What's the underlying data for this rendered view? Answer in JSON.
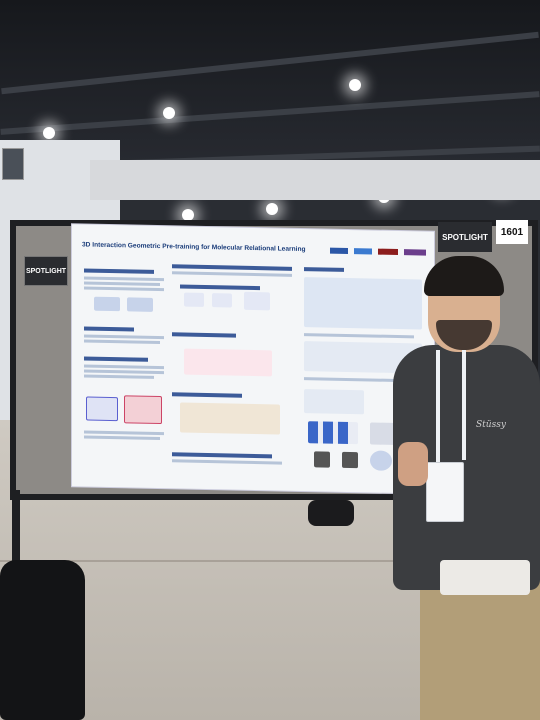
{
  "poster": {
    "title": "3D Interaction Geometric Pre-training for Molecular Relational Learning",
    "spotlight_left": "SPOTLIGHT",
    "spotlight_right": "SPOTLIGHT",
    "board_number": "1601"
  },
  "hoodie_text": "Stüssy"
}
